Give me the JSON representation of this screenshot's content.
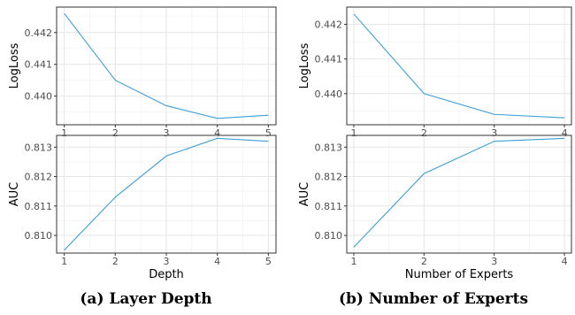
{
  "colors": {
    "line": "#3a9fd6",
    "grid_major": "#e6e6e6",
    "grid_minor": "#f3f3f3",
    "frame": "#333333"
  },
  "captions": {
    "a": "(a) Layer Depth",
    "b": "(b) Number of Experts"
  },
  "chart_data": [
    {
      "id": "a-logloss",
      "type": "line",
      "title": "",
      "xlabel": "",
      "ylabel": "LogLoss",
      "x": [
        1,
        2,
        3,
        4,
        5
      ],
      "y": [
        0.4426,
        0.4405,
        0.4397,
        0.4393,
        0.4394
      ],
      "xlim": [
        0.85,
        5.15
      ],
      "ylim": [
        0.4391,
        0.4428
      ],
      "xticks": [
        1,
        2,
        3,
        4,
        5
      ],
      "yticks": [
        0.44,
        0.441,
        0.442
      ],
      "ytick_labels": [
        "0.440",
        "0.441",
        "0.442"
      ],
      "grid": true
    },
    {
      "id": "a-auc",
      "type": "line",
      "title": "",
      "xlabel": "Depth",
      "ylabel": "AUC",
      "x": [
        1,
        2,
        3,
        4,
        5
      ],
      "y": [
        0.8095,
        0.8113,
        0.8127,
        0.8133,
        0.8132
      ],
      "xlim": [
        0.85,
        5.15
      ],
      "ylim": [
        0.8094,
        0.8134
      ],
      "xticks": [
        1,
        2,
        3,
        4,
        5
      ],
      "yticks": [
        0.81,
        0.811,
        0.812,
        0.813
      ],
      "ytick_labels": [
        "0.810",
        "0.811",
        "0.812",
        "0.813"
      ],
      "grid": true
    },
    {
      "id": "b-logloss",
      "type": "line",
      "title": "",
      "xlabel": "",
      "ylabel": "LogLoss",
      "x": [
        1,
        2,
        3,
        4
      ],
      "y": [
        0.4423,
        0.44,
        0.4394,
        0.4393
      ],
      "xlim": [
        0.9,
        4.1
      ],
      "ylim": [
        0.4391,
        0.4425
      ],
      "xticks": [
        1,
        2,
        3,
        4
      ],
      "yticks": [
        0.44,
        0.441,
        0.442
      ],
      "ytick_labels": [
        "0.440",
        "0.441",
        "0.442"
      ],
      "grid": true
    },
    {
      "id": "b-auc",
      "type": "line",
      "title": "",
      "xlabel": "Number of Experts",
      "ylabel": "AUC",
      "x": [
        1,
        2,
        3,
        4
      ],
      "y": [
        0.8096,
        0.8121,
        0.8132,
        0.8133
      ],
      "xlim": [
        0.9,
        4.1
      ],
      "ylim": [
        0.8094,
        0.8134
      ],
      "xticks": [
        1,
        2,
        3,
        4
      ],
      "yticks": [
        0.81,
        0.811,
        0.812,
        0.813
      ],
      "ytick_labels": [
        "0.810",
        "0.811",
        "0.812",
        "0.813"
      ],
      "grid": true
    }
  ]
}
